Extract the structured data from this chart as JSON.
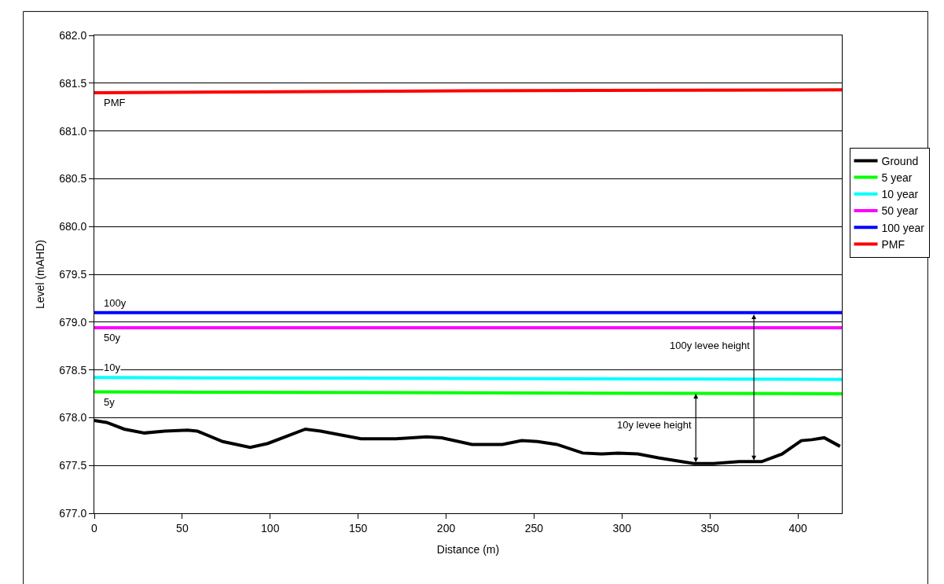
{
  "chart_data": {
    "type": "line",
    "xlabel": "Distance (m)",
    "ylabel": "Level (mAHD)",
    "xlim": [
      0,
      425
    ],
    "xticks": [
      0,
      50,
      100,
      150,
      200,
      250,
      300,
      350,
      400
    ],
    "ylim": [
      677.0,
      682.0
    ],
    "yticks": [
      {
        "value": 677.0,
        "label": "677.0"
      },
      {
        "value": 677.5,
        "label": "677.5"
      },
      {
        "value": 678.0,
        "label": "678.0"
      },
      {
        "value": 678.5,
        "label": "678.5"
      },
      {
        "value": 679.0,
        "label": "679.0"
      },
      {
        "value": 679.5,
        "label": "679.5"
      },
      {
        "value": 680.0,
        "label": "680.0"
      },
      {
        "value": 680.5,
        "label": "680.5"
      },
      {
        "value": 681.0,
        "label": "681.0"
      },
      {
        "value": 681.5,
        "label": "681.5"
      },
      {
        "value": 682.0,
        "label": "682.0"
      }
    ],
    "grid": "y",
    "legend": "right",
    "marker": "none",
    "line_style": "solid",
    "series": [
      {
        "name": "Ground",
        "color": "#000000",
        "x": [
          0,
          7,
          17,
          28.5,
          40,
          53,
          58.5,
          73,
          88.6,
          98.6,
          120,
          128.7,
          151.6,
          171.7,
          189,
          197.5,
          214.7,
          232,
          243,
          252,
          263,
          277.7,
          289,
          297.8,
          309,
          320.7,
          340.8,
          352,
          366.6,
          379.4,
          391,
          402,
          408,
          415,
          424
        ],
        "values": [
          677.97,
          677.95,
          677.88,
          677.84,
          677.86,
          677.87,
          677.86,
          677.75,
          677.69,
          677.73,
          677.88,
          677.86,
          677.78,
          677.78,
          677.8,
          677.79,
          677.72,
          677.72,
          677.76,
          677.75,
          677.72,
          677.63,
          677.62,
          677.63,
          677.62,
          677.58,
          677.52,
          677.52,
          677.54,
          677.54,
          677.62,
          677.76,
          677.77,
          677.79,
          677.7
        ]
      },
      {
        "name": "5 year",
        "color": "#00ff00",
        "x": [
          0,
          212,
          425
        ],
        "values": [
          678.27,
          678.26,
          678.25
        ]
      },
      {
        "name": "10 year",
        "color": "#00ffff",
        "x": [
          0,
          212,
          425
        ],
        "values": [
          678.42,
          678.41,
          678.4
        ]
      },
      {
        "name": "50 year",
        "color": "#ff00ff",
        "x": [
          0,
          212,
          425
        ],
        "values": [
          678.94,
          678.94,
          678.94
        ]
      },
      {
        "name": "100 year",
        "color": "#0000ff",
        "x": [
          0,
          212,
          425
        ],
        "values": [
          679.1,
          679.1,
          679.1
        ]
      },
      {
        "name": "PMF",
        "color": "#ff0000",
        "x": [
          0,
          212,
          425
        ],
        "values": [
          681.4,
          681.42,
          681.43
        ]
      }
    ],
    "annotations": [
      {
        "text": "PMF",
        "x": 5,
        "y": 681.4
      },
      {
        "text": "100y",
        "x": 5,
        "y": 679.1
      },
      {
        "text": "50y",
        "x": 5,
        "y": 678.94
      },
      {
        "text": "10y",
        "x": 5,
        "y": 678.42
      },
      {
        "text": "5y",
        "x": 5,
        "y": 678.27
      },
      {
        "text": "10y levee height",
        "x": 342,
        "y": 678.25
      },
      {
        "text": "100y levee height",
        "x": 375,
        "y": 679.08
      }
    ]
  }
}
